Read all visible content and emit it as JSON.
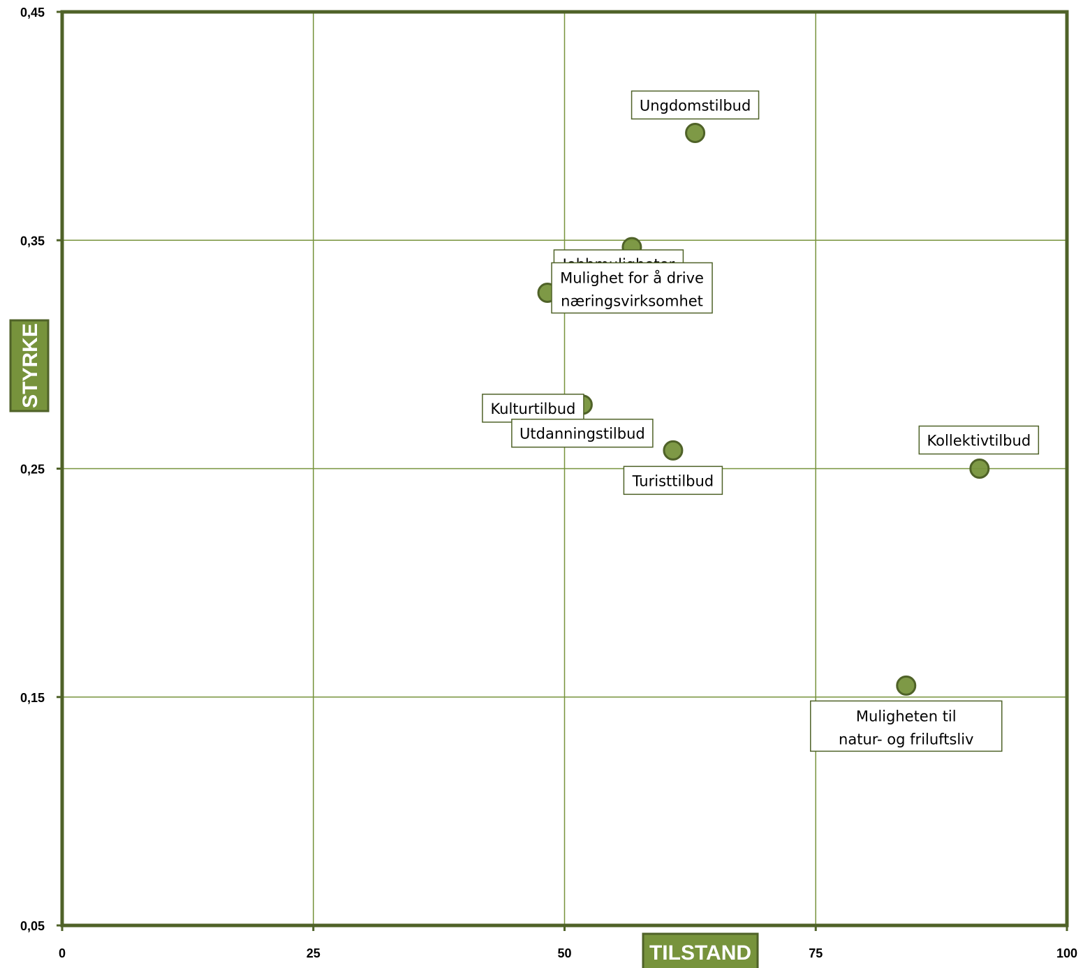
{
  "chart_data": {
    "type": "scatter",
    "title": "",
    "xlabel": "TILSTAND",
    "ylabel": "STYRKE",
    "xlim": [
      0,
      100
    ],
    "ylim": [
      0.05,
      0.45
    ],
    "x_ticks": [
      "0",
      "25",
      "50",
      "75",
      "100"
    ],
    "x_tick_values": [
      0,
      25,
      50,
      75,
      100
    ],
    "y_ticks": [
      "0,05",
      "0,15",
      "0,25",
      "0,35",
      "0,45"
    ],
    "y_tick_values": [
      0.05,
      0.15,
      0.25,
      0.35,
      0.45
    ],
    "grid": true,
    "points": [
      {
        "label": "Ungdomstilbud",
        "x": 63.0,
        "y": 0.397
      },
      {
        "label": "Jobbmuligheter",
        "x": 56.7,
        "y": 0.347
      },
      {
        "label": "Mulighet for å drive næringsvirksomhet",
        "x": 48.3,
        "y": 0.327
      },
      {
        "label": "Kulturtilbud",
        "x": 51.8,
        "y": 0.278
      },
      {
        "label": "Utdanningstilbud",
        "x": 46.9,
        "y": 0.264
      },
      {
        "label": "Turisttilbud",
        "x": 60.8,
        "y": 0.258
      },
      {
        "label": "Kollektivtilbud",
        "x": 91.3,
        "y": 0.25
      },
      {
        "label": "Muligheten til natur- og friluftsliv",
        "x": 84.0,
        "y": 0.155
      }
    ],
    "colors": {
      "axis": "#4f6228",
      "grid": "#77933c",
      "marker_fill": "#77933c",
      "marker_stroke": "#4f6228",
      "title_box": "#77933c"
    }
  }
}
